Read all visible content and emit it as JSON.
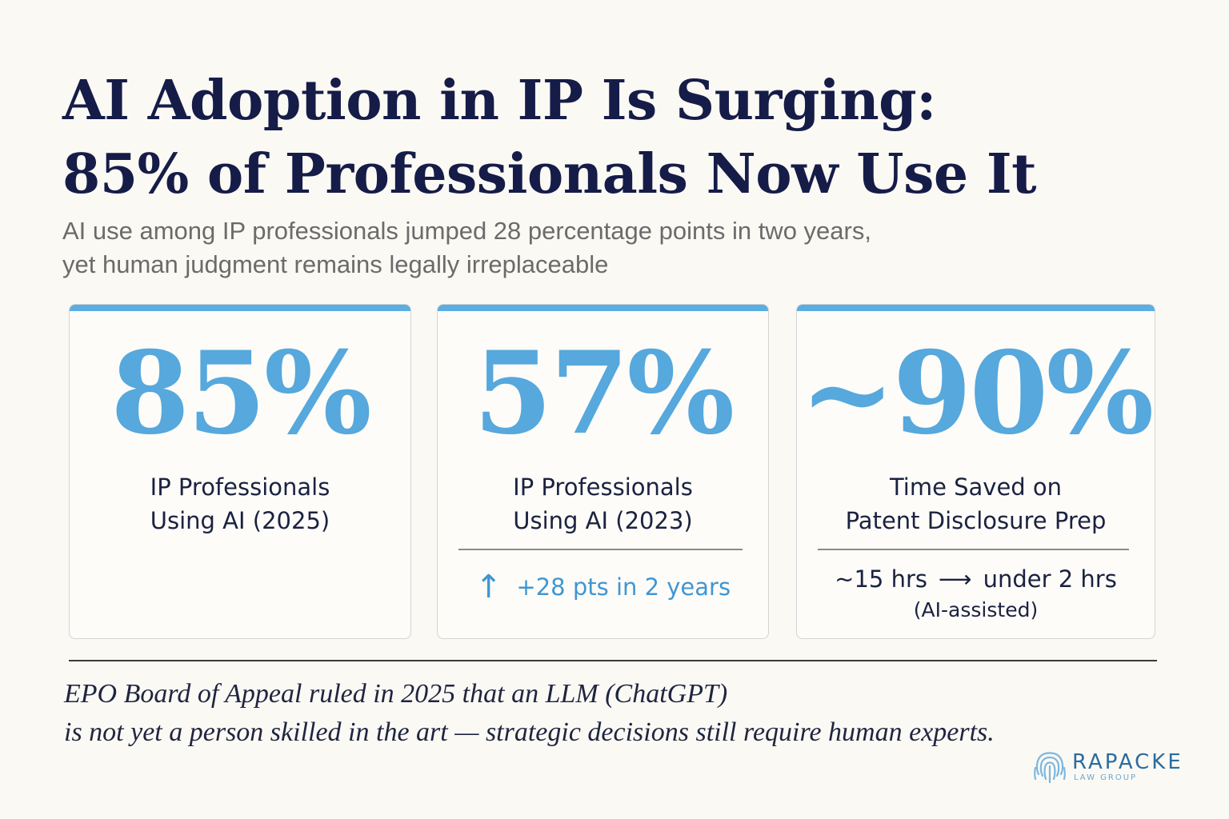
{
  "header": {
    "title_line1": "AI Adoption in IP Is Surging:",
    "title_line2": "85% of Professionals Now Use It",
    "subtitle_line1": "AI use among IP professionals jumped 28 percentage points in two years,",
    "subtitle_line2": "yet human judgment remains legally irreplaceable"
  },
  "cards": [
    {
      "value": "85%",
      "label_line1": "IP Professionals",
      "label_line2": "Using AI (2025)"
    },
    {
      "value": "57%",
      "label_line1": "IP Professionals",
      "label_line2": "Using AI (2023)",
      "note_icon": "arrow-up-icon",
      "note_text": "+28 pts in 2 years"
    },
    {
      "value": "~90%",
      "label_line1": "Time Saved on",
      "label_line2": "Patent Disclosure Prep",
      "note_from": "~15 hrs",
      "note_arrow": "⟶",
      "note_to": "under 2 hrs",
      "note_sub": "(AI-assisted)"
    }
  ],
  "footer": {
    "quote_line1": "EPO Board of Appeal ruled in 2025 that an LLM (ChatGPT)",
    "quote_line2": "is not yet a person skilled in the art — strategic decisions still require human experts."
  },
  "logo": {
    "name": "RAPACKE",
    "sub": "LAW GROUP",
    "icon": "fingerprint-icon"
  },
  "colors": {
    "accent": "#5aaee2",
    "title": "#161c48",
    "stat": "#56a8dd",
    "background": "#fbf9f4"
  }
}
